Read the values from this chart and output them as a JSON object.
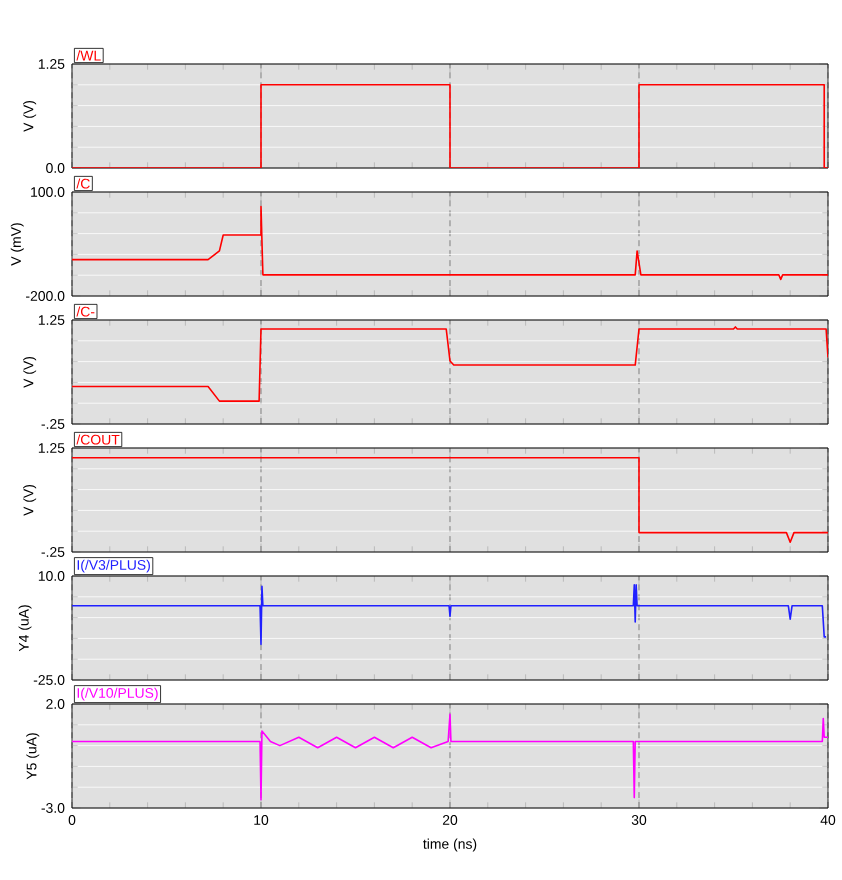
{
  "chart_data": [
    {
      "type": "line",
      "ylabel": "V (V)",
      "xlim": [
        0,
        40
      ],
      "xticks": [
        0,
        10,
        20,
        30,
        40
      ],
      "ylim": [
        0,
        1.25
      ],
      "yticks": [
        {
          "value": 0,
          "label": "0.0"
        },
        {
          "value": 1.25,
          "label": "1.25"
        }
      ],
      "grid": true,
      "tick_labels": "y",
      "series": [
        {
          "name": "/WL",
          "color": "#ff0000",
          "x": [
            0,
            10,
            10,
            20,
            20,
            30,
            30,
            39.8,
            39.8,
            40
          ],
          "values": [
            0,
            0,
            1,
            1,
            0,
            0,
            1,
            1,
            0,
            0
          ]
        }
      ]
    },
    {
      "type": "line",
      "ylabel": "V (mV)",
      "xlim": [
        0,
        40
      ],
      "xticks": [
        0,
        10,
        20,
        30,
        40
      ],
      "ylim": [
        -200,
        100
      ],
      "yticks": [
        {
          "value": -200,
          "label": "-200.0"
        },
        {
          "value": 100,
          "label": "100.0"
        }
      ],
      "grid": true,
      "tick_labels": "y",
      "series": [
        {
          "name": "/C",
          "color": "#ff0000",
          "x": [
            0,
            7.2,
            7.8,
            8,
            10,
            10,
            10.1,
            29.8,
            29.9,
            30.1,
            37.4,
            37.5,
            37.6,
            40
          ],
          "values": [
            -95,
            -95,
            -70,
            -24,
            -24,
            58,
            -139,
            -139,
            -70,
            -139,
            -139,
            -152,
            -139,
            -139
          ]
        }
      ]
    },
    {
      "type": "line",
      "ylabel": "V (V)",
      "xlim": [
        0,
        40
      ],
      "xticks": [
        0,
        10,
        20,
        30,
        40
      ],
      "ylim": [
        -0.25,
        1.25
      ],
      "yticks": [
        {
          "value": -0.25,
          "label": "-.25"
        },
        {
          "value": 1.25,
          "label": "1.25"
        }
      ],
      "grid": true,
      "tick_labels": "y",
      "series": [
        {
          "name": "/C-",
          "color": "#ff0000",
          "x": [
            0,
            7.2,
            7.8,
            9.9,
            10,
            19.8,
            20,
            20.2,
            29.8,
            30,
            35,
            35.1,
            35.2,
            39.9,
            40
          ],
          "values": [
            0.29,
            0.29,
            0.08,
            0.08,
            1.12,
            1.12,
            0.66,
            0.6,
            0.6,
            1.12,
            1.12,
            1.15,
            1.12,
            1.12,
            0.71
          ]
        }
      ]
    },
    {
      "type": "line",
      "ylabel": "V (V)",
      "xlim": [
        0,
        40
      ],
      "xticks": [
        0,
        10,
        20,
        30,
        40
      ],
      "ylim": [
        -0.25,
        1.25
      ],
      "yticks": [
        {
          "value": -0.25,
          "label": "-.25"
        },
        {
          "value": 1.25,
          "label": "1.25"
        }
      ],
      "grid": true,
      "tick_labels": "y",
      "series": [
        {
          "name": "/COUT",
          "color": "#ff0000",
          "x": [
            0,
            30,
            30,
            37.8,
            38,
            38.2,
            40
          ],
          "values": [
            1.11,
            1.11,
            0.03,
            0.03,
            -0.11,
            0.03,
            0.03
          ]
        }
      ]
    },
    {
      "type": "line",
      "ylabel": "Y4 (uA)",
      "xlim": [
        0,
        40
      ],
      "xticks": [
        0,
        10,
        20,
        30,
        40
      ],
      "ylim": [
        -25,
        10
      ],
      "yticks": [
        {
          "value": -25,
          "label": "-25.0"
        },
        {
          "value": 10,
          "label": "10.0"
        }
      ],
      "grid": true,
      "tick_labels": "y",
      "series": [
        {
          "name": "I(/V3/PLUS)",
          "color": "#2020ff",
          "x": [
            0,
            9.95,
            10,
            10.05,
            10.1,
            19.95,
            20,
            20.05,
            29.7,
            29.75,
            29.8,
            29.85,
            29.9,
            37.9,
            38,
            38.1,
            39.7,
            39.8,
            39.9
          ],
          "values": [
            0,
            0,
            -13,
            6.5,
            0,
            0,
            -3.5,
            0,
            0,
            7,
            -5.5,
            7,
            0,
            0,
            -4.5,
            0,
            0,
            -10.5,
            -10.5
          ]
        }
      ]
    },
    {
      "type": "line",
      "ylabel": "Y5 (uA)",
      "xlabel": "time (ns)",
      "xlim": [
        0,
        40
      ],
      "xticks": [
        0,
        10,
        20,
        30,
        40
      ],
      "ylim": [
        -3,
        2
      ],
      "yticks": [
        {
          "value": -3,
          "label": "-3.0"
        },
        {
          "value": 2,
          "label": "2.0"
        }
      ],
      "grid": true,
      "series": [
        {
          "name": "I(/V10/PLUS)",
          "color": "#ff00ff",
          "x": [
            0,
            9.95,
            10,
            10.05,
            10.5,
            11,
            12,
            13,
            14,
            15,
            16,
            17,
            18,
            19,
            19.9,
            20,
            20.05,
            29.7,
            29.75,
            29.8,
            39.7,
            39.75,
            39.8,
            40
          ],
          "values": [
            0.2,
            0.2,
            -2.6,
            0.7,
            0.2,
            0,
            0.4,
            -0.1,
            0.4,
            -0.1,
            0.4,
            -0.1,
            0.4,
            -0.1,
            0.2,
            1.5,
            0.2,
            0.2,
            -2.5,
            0.2,
            0.2,
            1.3,
            0.4,
            0.4
          ]
        }
      ]
    }
  ]
}
